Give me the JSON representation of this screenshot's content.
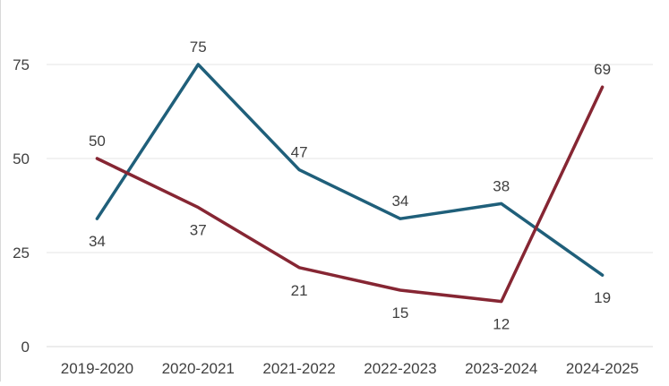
{
  "chart_data": {
    "type": "line",
    "categories": [
      "2019-2020",
      "2020-2021",
      "2021-2022",
      "2022-2023",
      "2023-2024",
      "2024-2025"
    ],
    "series": [
      {
        "values": [
          34,
          75,
          47,
          34,
          38,
          19
        ],
        "color": "#1f5f7a"
      },
      {
        "values": [
          50,
          37,
          21,
          15,
          12,
          69
        ],
        "color": "#862633"
      }
    ],
    "title": "",
    "xlabel": "",
    "ylabel": "",
    "ylim": [
      0,
      75
    ],
    "yticks": [
      0,
      25,
      50,
      75
    ],
    "grid": true,
    "legend": "none",
    "data_labels": true
  }
}
